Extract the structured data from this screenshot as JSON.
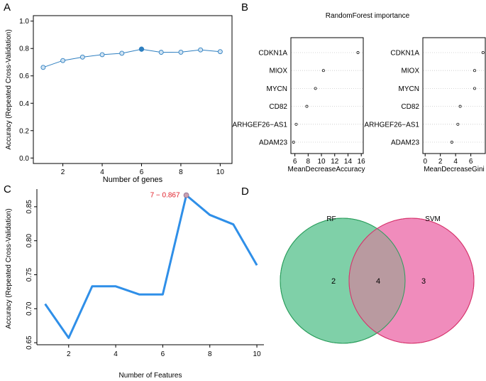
{
  "panel_labels": {
    "a": "A",
    "b": "B",
    "c": "C",
    "d": "D"
  },
  "colors": {
    "lineA": "#2e7fc0",
    "markerFillA": "#cfe3f3",
    "lineC": "#2f8fe8",
    "annotC": "#e0202a",
    "markerC": "#c9a0b0",
    "vennLeft": "#7fd0a8",
    "vennLeftStroke": "#2a9d5c",
    "vennRight": "#f08cbc",
    "vennRightStroke": "#d6336c",
    "vennOverlap": "#b99aa0",
    "dotline": "#c8c8c8"
  },
  "chart_data": [
    {
      "id": "A",
      "type": "line",
      "xlabel": "Number of genes",
      "ylabel": "Accuracy (Repeated Cross-Validation)",
      "x": [
        1,
        2,
        3,
        4,
        5,
        6,
        7,
        8,
        9,
        10
      ],
      "values": [
        0.662,
        0.712,
        0.737,
        0.755,
        0.765,
        0.795,
        0.772,
        0.773,
        0.79,
        0.777
      ],
      "highlight_index": 5,
      "xlim": [
        0.5,
        10.6
      ],
      "ylim": [
        -0.04,
        1.04
      ],
      "xticks": [
        2,
        4,
        6,
        8,
        10
      ],
      "yticks": [
        0.0,
        0.2,
        0.4,
        0.6,
        0.8,
        1.0
      ],
      "ytick_labels": [
        "0.0",
        "0.2",
        "0.4",
        "0.6",
        "0.8",
        "1.0"
      ]
    },
    {
      "id": "B",
      "type": "scatter",
      "title": "RandomForest importance",
      "genes": [
        "CDKN1A",
        "MIOX",
        "MYCN",
        "CD82",
        "ARHGEF26−AS1",
        "ADAM23"
      ],
      "panels": [
        {
          "xlabel": "MeanDecreaseAccuracy",
          "values": [
            15.5,
            10.3,
            9.1,
            7.8,
            6.2,
            5.8
          ],
          "xlim": [
            5.4,
            16.3
          ],
          "xticks": [
            6,
            8,
            10,
            12,
            14,
            16
          ]
        },
        {
          "xlabel": "MeanDecreaseGini",
          "values": [
            7.6,
            6.5,
            6.5,
            4.6,
            4.3,
            3.5
          ],
          "xlim": [
            -0.3,
            7.9
          ],
          "xticks": [
            0,
            2,
            4,
            6
          ]
        }
      ]
    },
    {
      "id": "C",
      "type": "line",
      "xlabel": "Number of Features",
      "ylabel": "Accuracy (Repeated Cross-Validation)",
      "x": [
        1,
        2,
        3,
        4,
        5,
        6,
        7,
        8,
        9,
        10
      ],
      "values": [
        0.707,
        0.657,
        0.733,
        0.733,
        0.721,
        0.721,
        0.867,
        0.838,
        0.824,
        0.764
      ],
      "annotation": "7 − 0.867",
      "highlight_index": 6,
      "xlim": [
        0.65,
        10.3
      ],
      "ylim": [
        0.647,
        0.876
      ],
      "xticks": [
        2,
        4,
        6,
        8,
        10
      ],
      "yticks": [
        0.65,
        0.7,
        0.75,
        0.8,
        0.85
      ],
      "ytick_labels": [
        "0.65",
        "0.70",
        "0.75",
        "0.80",
        "0.85"
      ]
    },
    {
      "id": "D",
      "type": "venn",
      "sets": [
        {
          "name": "RF",
          "only": "2"
        },
        {
          "name": "SVM",
          "only": "3"
        }
      ],
      "overlap": "4"
    }
  ]
}
